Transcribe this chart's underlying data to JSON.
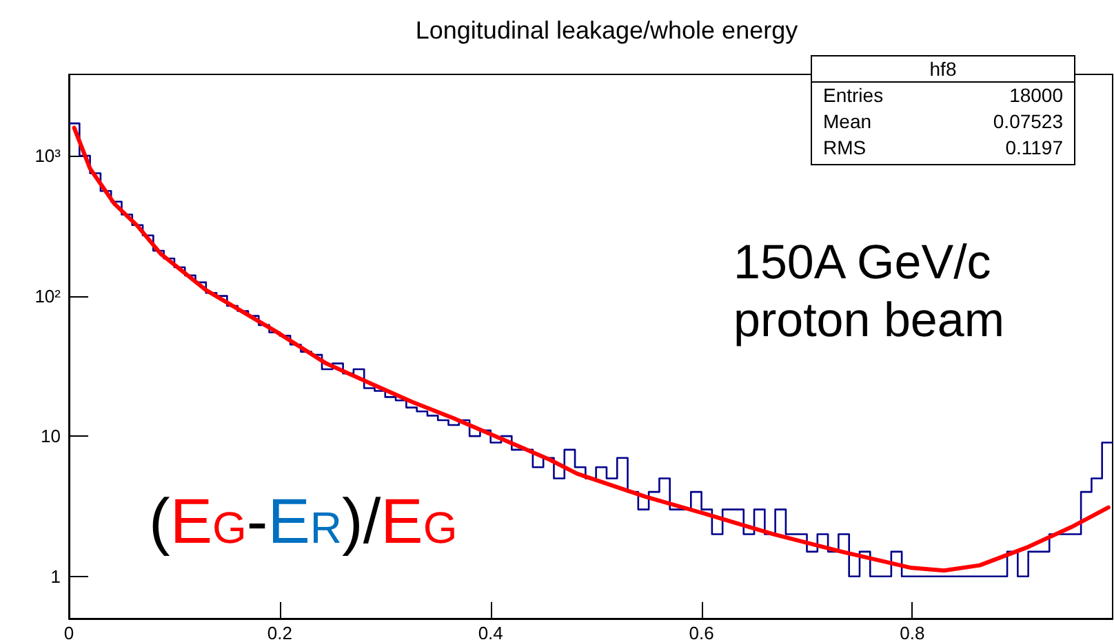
{
  "chart_data": {
    "type": "histogram",
    "title": "Longitudinal leakage/whole energy",
    "annotations": [
      "hf8",
      "Entries",
      "18000",
      "Mean",
      "0.07523",
      "RMS",
      "0.1197",
      "150A GeV/c\nproton beam",
      "(EG-ER)/EG"
    ],
    "bins": [
      0,
      0.01,
      0.02,
      0.03,
      0.04,
      0.05,
      0.06,
      0.07,
      0.08,
      0.09,
      0.1,
      0.11,
      0.12,
      0.13,
      0.14,
      0.15,
      0.16,
      0.17,
      0.18,
      0.19,
      0.2,
      0.21,
      0.22,
      0.23,
      0.24,
      0.25,
      0.26,
      0.27,
      0.28,
      0.29,
      0.3,
      0.31,
      0.32,
      0.33,
      0.34,
      0.35,
      0.36,
      0.37,
      0.38,
      0.39,
      0.4,
      0.41,
      0.42,
      0.43,
      0.44,
      0.45,
      0.46,
      0.47,
      0.48,
      0.49,
      0.5,
      0.51,
      0.52,
      0.53,
      0.54,
      0.55,
      0.56,
      0.57,
      0.58,
      0.59,
      0.6,
      0.61,
      0.62,
      0.63,
      0.64,
      0.65,
      0.66,
      0.67,
      0.68,
      0.69,
      0.7,
      0.71,
      0.72,
      0.73,
      0.74,
      0.75,
      0.76,
      0.77,
      0.78,
      0.79,
      0.8,
      0.81,
      0.82,
      0.83,
      0.84,
      0.85,
      0.86,
      0.87,
      0.88,
      0.89,
      0.9,
      0.91,
      0.92,
      0.93,
      0.94,
      0.95,
      0.96,
      0.97,
      0.98,
      0.99
    ],
    "series": [
      {
        "color": "#00008b",
        "values": [
          1700,
          1000,
          750,
          560,
          470,
          380,
          320,
          270,
          210,
          185,
          160,
          140,
          125,
          105,
          100,
          85,
          78,
          72,
          62,
          55,
          52,
          45,
          40,
          38,
          30,
          33,
          28,
          30,
          22,
          21,
          19,
          18,
          16,
          15,
          14,
          13,
          12,
          13,
          10,
          11,
          9,
          10,
          8,
          8,
          6,
          7,
          5,
          8,
          6,
          5,
          6,
          5,
          7,
          4,
          3,
          4,
          5,
          3,
          3,
          4,
          3,
          2,
          3,
          3,
          2,
          3,
          2,
          3,
          2,
          2,
          1.5,
          2,
          1.5,
          2,
          1,
          1.5,
          1,
          1,
          1.5,
          1,
          1,
          1,
          1,
          1,
          1,
          1,
          1,
          1,
          1,
          1.5,
          1,
          1.5,
          1.5,
          2,
          2,
          2,
          4,
          5,
          9
        ]
      },
      {
        "type": "line",
        "color": "#ff0000",
        "x": [
          0.005,
          0.02,
          0.043,
          0.065,
          0.087,
          0.13,
          0.196,
          0.244,
          0.287,
          0.326,
          0.365,
          0.417,
          0.456,
          0.482,
          0.547,
          0.603,
          0.668,
          0.733,
          0.799,
          0.83,
          0.864,
          0.908,
          0.951,
          0.986
        ],
        "values": [
          1580,
          810,
          455,
          316,
          200,
          110,
          56,
          33,
          23.6,
          17.5,
          13.4,
          9.1,
          6.8,
          5.4,
          3.7,
          2.8,
          2.0,
          1.5,
          1.15,
          1.1,
          1.2,
          1.6,
          2.25,
          3.1
        ]
      }
    ],
    "xlim": [
      0,
      0.99
    ],
    "xticks": [
      0,
      0.2,
      0.4,
      0.6,
      0.8
    ],
    "log": "y",
    "ylim": [
      0.5,
      3800
    ],
    "yticks": [
      {
        "value": 1,
        "label": "1"
      },
      {
        "value": 10,
        "label": "10"
      },
      {
        "value": 100,
        "label": "10²"
      },
      {
        "value": 1000,
        "label": "10³"
      }
    ],
    "line_style": "solid",
    "marker": "none"
  }
}
